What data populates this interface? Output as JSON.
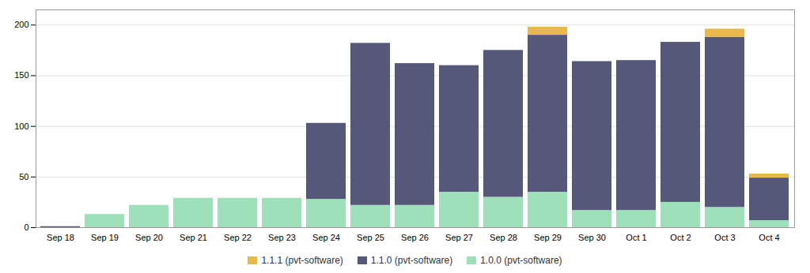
{
  "chart_data": {
    "type": "bar",
    "stacked": true,
    "grid": true,
    "categories": [
      "Sep 18",
      "Sep 19",
      "Sep 20",
      "Sep 21",
      "Sep 22",
      "Sep 23",
      "Sep 24",
      "Sep 25",
      "Sep 26",
      "Sep 27",
      "Sep 28",
      "Sep 29",
      "Sep 30",
      "Oct 1",
      "Oct 2",
      "Oct 3",
      "Oct 4"
    ],
    "series": [
      {
        "name": "1.0.0 (pvt-software)",
        "color": "#9de0ba",
        "values": [
          0,
          13,
          22,
          29,
          29,
          29,
          28,
          22,
          22,
          35,
          30,
          35,
          17,
          17,
          25,
          20,
          7
        ]
      },
      {
        "name": "1.1.0 (pvt-software)",
        "color": "#555878",
        "values": [
          1,
          0,
          0,
          0,
          0,
          0,
          75,
          160,
          140,
          125,
          145,
          155,
          147,
          148,
          158,
          168,
          42
        ]
      },
      {
        "name": "1.1.1 (pvt-software)",
        "color": "#e8b84b",
        "values": [
          0,
          0,
          0,
          0,
          0,
          0,
          0,
          0,
          0,
          0,
          0,
          8,
          0,
          0,
          0,
          8,
          4
        ]
      }
    ],
    "ylim": [
      0,
      215
    ],
    "yticks": [
      0,
      50,
      100,
      150,
      200
    ]
  }
}
